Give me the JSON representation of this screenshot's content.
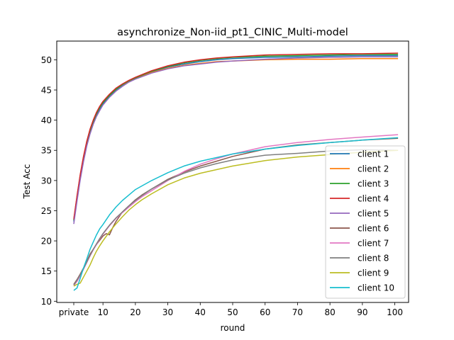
{
  "chart_data": {
    "type": "line",
    "title": "asynchronize_Non-iid_pt1_CINIC_Multi-model",
    "xlabel": "round",
    "ylabel": "Test Acc",
    "xlim": [
      -4.25,
      104.25
    ],
    "ylim": [
      9.8,
      53.1
    ],
    "x_ticks": [
      {
        "value": 1,
        "label": "private"
      },
      {
        "value": 10,
        "label": "10"
      },
      {
        "value": 20,
        "label": "20"
      },
      {
        "value": 30,
        "label": "30"
      },
      {
        "value": 40,
        "label": "40"
      },
      {
        "value": 50,
        "label": "50"
      },
      {
        "value": 60,
        "label": "60"
      },
      {
        "value": 70,
        "label": "70"
      },
      {
        "value": 80,
        "label": "80"
      },
      {
        "value": 90,
        "label": "90"
      },
      {
        "value": 100,
        "label": "100"
      }
    ],
    "y_ticks": [
      10,
      15,
      20,
      25,
      30,
      35,
      40,
      45,
      50
    ],
    "legend_position": "lower-right",
    "grid": false,
    "series": [
      {
        "name": "client 1",
        "color": "#1f77b4",
        "x": [
          1,
          2,
          3,
          4,
          5,
          6,
          7,
          8,
          9,
          10,
          12,
          14,
          16,
          18,
          20,
          25,
          30,
          35,
          40,
          45,
          50,
          60,
          70,
          80,
          90,
          101
        ],
        "y": [
          23.2,
          27.0,
          30.5,
          33.5,
          36.0,
          38.0,
          39.6,
          40.9,
          41.9,
          42.7,
          44.0,
          45.0,
          45.8,
          46.5,
          47.0,
          48.0,
          48.8,
          49.3,
          49.7,
          50.0,
          50.2,
          50.4,
          50.5,
          50.6,
          50.7,
          50.7
        ]
      },
      {
        "name": "client 2",
        "color": "#ff7f0e",
        "x": [
          1,
          2,
          3,
          4,
          5,
          6,
          7,
          8,
          9,
          10,
          12,
          14,
          16,
          18,
          20,
          25,
          30,
          35,
          40,
          45,
          50,
          60,
          70,
          80,
          90,
          101
        ],
        "y": [
          23.5,
          27.4,
          30.9,
          33.9,
          36.4,
          38.4,
          39.9,
          41.2,
          42.2,
          43.0,
          44.2,
          45.1,
          45.9,
          46.4,
          46.9,
          47.9,
          48.6,
          49.1,
          49.4,
          49.7,
          49.8,
          50.0,
          50.1,
          50.1,
          50.2,
          50.2
        ]
      },
      {
        "name": "client 3",
        "color": "#2ca02c",
        "x": [
          1,
          2,
          3,
          4,
          5,
          6,
          7,
          8,
          9,
          10,
          12,
          14,
          16,
          18,
          20,
          25,
          30,
          35,
          40,
          45,
          50,
          60,
          70,
          80,
          90,
          101
        ],
        "y": [
          23.4,
          27.2,
          30.7,
          33.7,
          36.2,
          38.2,
          39.8,
          41.1,
          42.1,
          42.9,
          44.1,
          45.1,
          45.9,
          46.5,
          47.0,
          48.1,
          48.9,
          49.5,
          49.9,
          50.2,
          50.4,
          50.6,
          50.7,
          50.8,
          50.9,
          50.9
        ]
      },
      {
        "name": "client 4",
        "color": "#d62728",
        "x": [
          1,
          2,
          3,
          4,
          5,
          6,
          7,
          8,
          9,
          10,
          12,
          14,
          16,
          18,
          20,
          25,
          30,
          35,
          40,
          45,
          50,
          60,
          70,
          80,
          90,
          101
        ],
        "y": [
          23.6,
          27.5,
          31.0,
          34.0,
          36.5,
          38.5,
          40.0,
          41.3,
          42.3,
          43.1,
          44.3,
          45.3,
          46.0,
          46.6,
          47.1,
          48.2,
          49.0,
          49.6,
          50.0,
          50.3,
          50.5,
          50.8,
          50.9,
          51.0,
          51.0,
          51.1
        ]
      },
      {
        "name": "client 5",
        "color": "#9467bd",
        "x": [
          1,
          2,
          3,
          4,
          5,
          6,
          7,
          8,
          9,
          10,
          12,
          14,
          16,
          18,
          20,
          25,
          30,
          35,
          40,
          45,
          50,
          60,
          70,
          80,
          90,
          101
        ],
        "y": [
          22.8,
          26.6,
          30.1,
          33.1,
          35.7,
          37.7,
          39.3,
          40.6,
          41.6,
          42.5,
          43.8,
          44.8,
          45.6,
          46.3,
          46.8,
          47.8,
          48.5,
          49.0,
          49.3,
          49.6,
          49.8,
          50.1,
          50.3,
          50.4,
          50.5,
          50.5
        ]
      },
      {
        "name": "client 6",
        "color": "#8c564b",
        "x": [
          1,
          2,
          3,
          4,
          5,
          6,
          7,
          8,
          9,
          10,
          11,
          12,
          13,
          14,
          15,
          16,
          18,
          20,
          22,
          25,
          30,
          35,
          40,
          45,
          50,
          60,
          70,
          80,
          90,
          101
        ],
        "y": [
          12.8,
          13.6,
          14.5,
          15.5,
          16.6,
          17.8,
          18.6,
          19.4,
          20.1,
          20.8,
          21.2,
          21.0,
          22.2,
          23.2,
          24.0,
          24.8,
          25.8,
          26.8,
          27.6,
          28.6,
          30.2,
          31.4,
          32.4,
          33.2,
          34.0,
          35.2,
          35.9,
          36.3,
          36.7,
          37.0
        ]
      },
      {
        "name": "client 7",
        "color": "#e377c2",
        "x": [
          1,
          2,
          3,
          4,
          5,
          6,
          7,
          8,
          9,
          10,
          12,
          14,
          16,
          18,
          20,
          22,
          25,
          30,
          35,
          40,
          45,
          50,
          60,
          70,
          80,
          90,
          101
        ],
        "y": [
          12.6,
          13.3,
          14.2,
          15.3,
          16.4,
          17.5,
          18.5,
          19.4,
          20.3,
          21.1,
          22.5,
          23.7,
          24.7,
          25.6,
          26.5,
          27.3,
          28.3,
          30.0,
          31.5,
          32.7,
          33.6,
          34.4,
          35.6,
          36.3,
          36.8,
          37.2,
          37.6
        ]
      },
      {
        "name": "client 8",
        "color": "#7f7f7f",
        "x": [
          1,
          2,
          3,
          4,
          5,
          6,
          7,
          8,
          9,
          10,
          12,
          14,
          16,
          18,
          20,
          22,
          25,
          30,
          35,
          40,
          45,
          50,
          60,
          70,
          80,
          90,
          101
        ],
        "y": [
          12.7,
          13.5,
          14.4,
          15.4,
          16.5,
          17.6,
          18.6,
          19.5,
          20.4,
          21.2,
          22.6,
          23.8,
          24.8,
          25.8,
          26.7,
          27.5,
          28.6,
          30.1,
          31.2,
          32.1,
          32.8,
          33.4,
          34.2,
          34.5,
          34.9,
          35.1,
          35.0
        ]
      },
      {
        "name": "client 9",
        "color": "#bcbd22",
        "x": [
          1,
          2,
          3,
          4,
          5,
          6,
          7,
          8,
          9,
          10,
          12,
          14,
          16,
          18,
          20,
          22,
          25,
          30,
          35,
          40,
          45,
          50,
          60,
          70,
          80,
          90,
          101
        ],
        "y": [
          12.5,
          12.8,
          13.0,
          14.0,
          15.0,
          16.0,
          17.2,
          18.3,
          19.2,
          20.0,
          21.5,
          22.8,
          24.0,
          25.1,
          26.0,
          26.8,
          27.8,
          29.3,
          30.4,
          31.2,
          31.8,
          32.4,
          33.3,
          33.9,
          34.3,
          34.7,
          35.0
        ]
      },
      {
        "name": "client 10",
        "color": "#17becf",
        "x": [
          1,
          2,
          3,
          4,
          5,
          6,
          7,
          8,
          9,
          10,
          12,
          14,
          16,
          18,
          20,
          22,
          25,
          30,
          35,
          40,
          45,
          50,
          55,
          60,
          70,
          80,
          90,
          101
        ],
        "y": [
          11.8,
          12.2,
          13.8,
          15.5,
          17.0,
          18.6,
          19.8,
          21.0,
          22.0,
          22.7,
          24.3,
          25.6,
          26.7,
          27.6,
          28.5,
          29.1,
          30.0,
          31.3,
          32.4,
          33.2,
          33.8,
          34.4,
          34.8,
          35.2,
          35.8,
          36.3,
          36.7,
          37.1
        ]
      }
    ]
  }
}
